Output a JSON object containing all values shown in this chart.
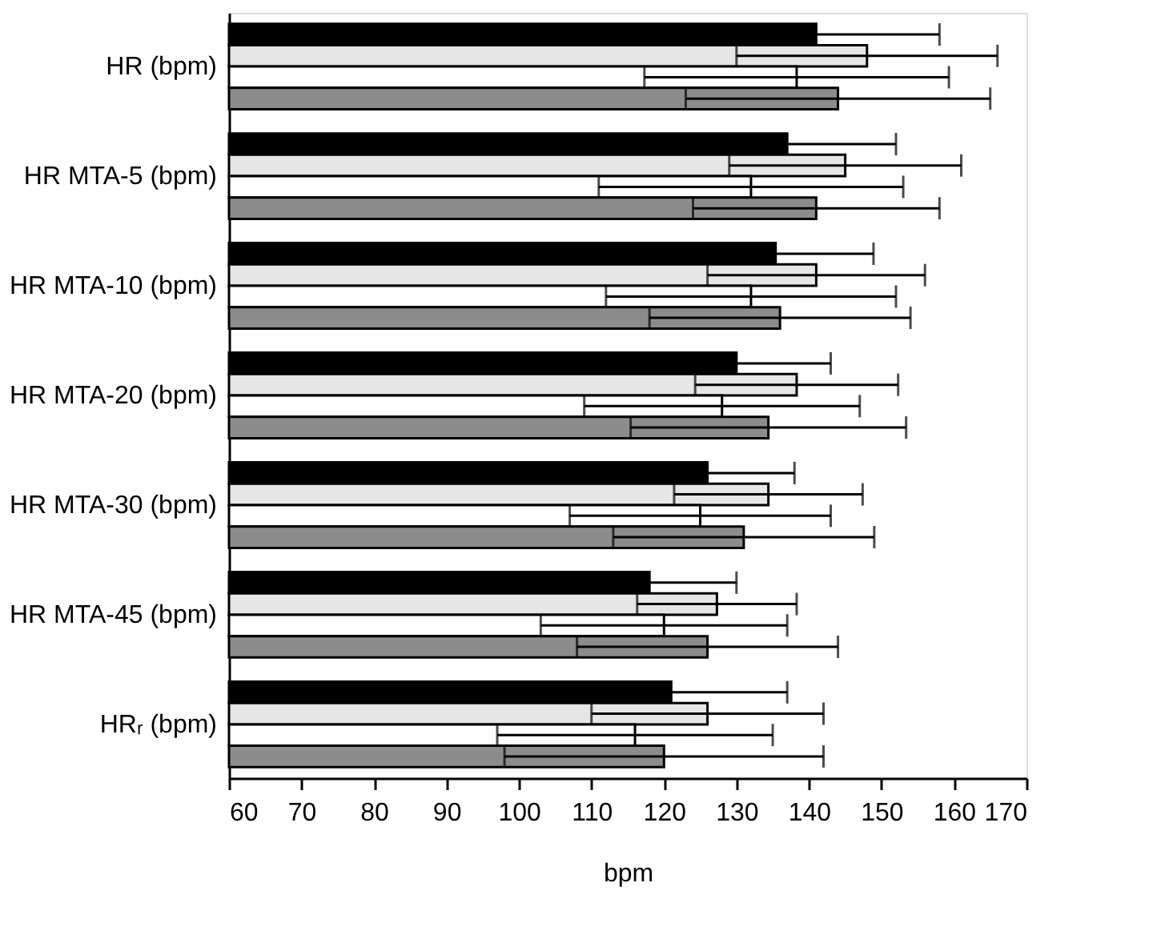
{
  "chart_data": {
    "type": "bar",
    "orientation": "horizontal",
    "xlabel": "bpm",
    "categories": [
      "HR (bpm)",
      "HR MTA-5 (bpm)",
      "HR MTA-10 (bpm)",
      "HR MTA-20 (bpm)",
      "HR MTA-30 (bpm)",
      "HR MTA-45 (bpm)",
      "HRᵣ (bpm)"
    ],
    "series": [
      {
        "color": "#000000",
        "values": [
          141,
          137,
          135.4,
          130,
          126,
          118,
          121
        ],
        "errors": [
          17,
          15,
          13.5,
          13,
          12,
          12,
          16
        ]
      },
      {
        "color": "#e6e6e6",
        "values": [
          148,
          145,
          141,
          138.3,
          134.4,
          127.3,
          126
        ],
        "errors": [
          18,
          16,
          15,
          14,
          13,
          11,
          16
        ]
      },
      {
        "color": "#ffffff",
        "values": [
          138.3,
          132,
          132,
          128,
          125,
          120,
          116
        ],
        "errors": [
          21,
          21,
          20,
          19,
          18,
          17,
          19
        ]
      },
      {
        "color": "#8c8c8c",
        "values": [
          144,
          141,
          136,
          134.4,
          131,
          126,
          120
        ],
        "errors": [
          21,
          17,
          18,
          19,
          18,
          18,
          22
        ]
      }
    ],
    "xlim": [
      60,
      170
    ],
    "xticks": [
      60,
      70,
      80,
      90,
      100,
      110,
      120,
      130,
      140,
      150,
      160,
      170
    ],
    "grid": false,
    "legend": false
  }
}
